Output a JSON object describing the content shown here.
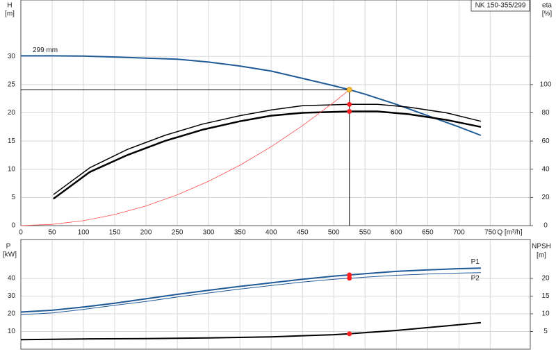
{
  "chart_data": [
    {
      "type": "line",
      "title": "NK 150-355/299",
      "ylabel": [
        "H",
        "[m]"
      ],
      "y2label": [
        "eta",
        "[%]"
      ],
      "xlabel": "Q [m³/h]",
      "xlim": [
        0,
        814
      ],
      "xticks": [
        0,
        50,
        100,
        150,
        200,
        250,
        300,
        350,
        400,
        450,
        500,
        550,
        600,
        650,
        700,
        750
      ],
      "ylim": [
        0,
        40
      ],
      "yticks": [
        0,
        5,
        10,
        15,
        20,
        25,
        30
      ],
      "y2lim": [
        0,
        160
      ],
      "y2ticks": [
        0,
        20,
        40,
        60,
        80,
        100
      ],
      "grid": true,
      "series": [
        {
          "name": "299 mm",
          "label_pos": "start",
          "color": "#1f5a96",
          "width": 2,
          "x": [
            0,
            50,
            100,
            150,
            200,
            250,
            300,
            350,
            400,
            450,
            500,
            525,
            550,
            600,
            650,
            700,
            735
          ],
          "values": [
            30.1,
            30.1,
            30.05,
            29.9,
            29.7,
            29.5,
            29.0,
            28.3,
            27.4,
            26.1,
            24.8,
            24.1,
            23.3,
            21.5,
            19.5,
            17.5,
            16.0
          ]
        },
        {
          "axis": "y2",
          "color": "#000000",
          "width": 1.5,
          "x": [
            52,
            110,
            170,
            230,
            290,
            350,
            400,
            450,
            525,
            570,
            620,
            680,
            735
          ],
          "values": [
            22,
            41,
            54,
            64,
            72,
            78,
            82,
            85,
            86,
            86,
            84,
            80,
            74
          ]
        },
        {
          "axis": "y2",
          "color": "#000000",
          "width": 2.5,
          "x": [
            52,
            110,
            170,
            230,
            290,
            350,
            400,
            450,
            525,
            570,
            620,
            680,
            735
          ],
          "values": [
            19,
            38,
            50,
            60,
            68,
            74,
            78,
            80,
            81,
            81,
            79,
            75,
            70
          ]
        },
        {
          "color": "#ff4a4a",
          "width": 0.8,
          "x": [
            0,
            50,
            100,
            150,
            200,
            250,
            300,
            350,
            400,
            450,
            500,
            525
          ],
          "values": [
            0,
            0.22,
            0.87,
            1.97,
            3.5,
            5.47,
            7.87,
            10.71,
            13.99,
            17.71,
            21.86,
            24.1
          ]
        },
        {
          "color": "#f5c542",
          "marker": true,
          "line": false,
          "crosshair": true,
          "x": [
            525
          ],
          "values": [
            24.1
          ]
        },
        {
          "axis": "y2",
          "color": "#ff2020",
          "marker": true,
          "line": false,
          "x": [
            525,
            525
          ],
          "values": [
            86,
            81
          ]
        }
      ]
    },
    {
      "type": "line",
      "ylabel": [
        "P",
        "[kW]"
      ],
      "y2label": [
        "NPSH",
        "[m]"
      ],
      "xlim": [
        0,
        814
      ],
      "xticks": [
        0,
        50,
        100,
        150,
        200,
        250,
        300,
        350,
        400,
        450,
        500,
        550,
        600,
        650,
        700,
        750
      ],
      "show_xtick_labels": false,
      "ylim": [
        0,
        62
      ],
      "yticks": [
        10,
        20,
        30,
        40
      ],
      "y2lim": [
        0,
        31
      ],
      "y2ticks": [
        5,
        10,
        15,
        20
      ],
      "grid": true,
      "series": [
        {
          "name": "P1",
          "label_pos": "end",
          "color": "#1f5a96",
          "width": 2,
          "x": [
            0,
            50,
            100,
            150,
            200,
            250,
            300,
            350,
            400,
            450,
            500,
            525,
            550,
            600,
            650,
            700,
            735
          ],
          "values": [
            21,
            22,
            23.8,
            26,
            28.5,
            31,
            33.3,
            35.5,
            37.5,
            39.5,
            41.3,
            42,
            42.7,
            44,
            44.8,
            45.5,
            45.8
          ]
        },
        {
          "name": "P2",
          "label_pos": "end",
          "color": "#1f5a96",
          "width": 1,
          "x": [
            0,
            50,
            100,
            150,
            200,
            250,
            300,
            350,
            400,
            450,
            500,
            525,
            550,
            600,
            650,
            700,
            735
          ],
          "values": [
            19.5,
            20.5,
            22.5,
            24.8,
            27,
            29.5,
            31.8,
            34,
            36,
            38,
            39.5,
            40.1,
            40.7,
            41.8,
            42.5,
            43,
            43.3
          ]
        },
        {
          "axis": "y2",
          "color": "#000000",
          "width": 2,
          "x": [
            0,
            50,
            100,
            200,
            300,
            400,
            450,
            500,
            525,
            600,
            650,
            700,
            735
          ],
          "values": [
            2.7,
            2.8,
            2.9,
            3.0,
            3.2,
            3.5,
            3.8,
            4.1,
            4.35,
            5.3,
            6.1,
            6.9,
            7.5
          ]
        },
        {
          "color": "#ff2020",
          "marker": true,
          "line": false,
          "x": [
            525,
            525
          ],
          "values": [
            42,
            40.1
          ]
        },
        {
          "axis": "y2",
          "color": "#ff2020",
          "marker": true,
          "line": false,
          "x": [
            525
          ],
          "values": [
            4.35
          ]
        }
      ]
    }
  ]
}
